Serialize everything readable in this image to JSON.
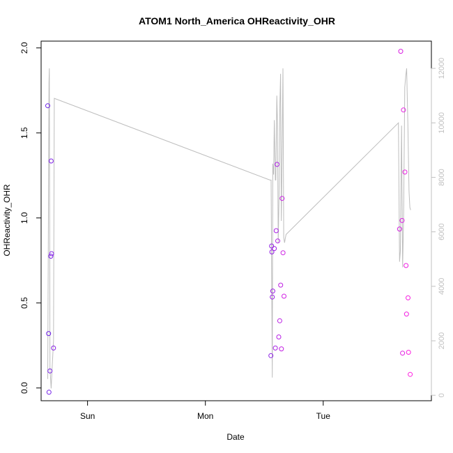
{
  "chart_data": {
    "type": "scatter",
    "title": "ATOM1 North_America OHReactivity_OHR",
    "xlabel": "Date",
    "ylabel": "OHReactivity_OHR",
    "x_ticks": [
      "Sun",
      "Mon",
      "Tue"
    ],
    "x_tick_days": [
      1,
      2,
      3
    ],
    "xlim_days": [
      0.606,
      3.918
    ],
    "ylim": [
      -0.075,
      2.04
    ],
    "y_ticks": [
      0.0,
      0.5,
      1.0,
      1.5,
      2.0
    ],
    "y2lim": [
      -200,
      13000
    ],
    "y2_ticks": [
      0,
      2000,
      4000,
      6000,
      8000,
      10000,
      12000
    ],
    "grid": false,
    "colors": {
      "point_start": "#6a1fe8",
      "point_end": "#ff1fe0",
      "secondary_line": "#bdbdbd",
      "secondary_axis": "#c0c0c0"
    },
    "series": [
      {
        "type": "points",
        "x_days": [
          0.662,
          0.669,
          0.673,
          0.681,
          0.688,
          0.691,
          0.695,
          0.711,
          2.556,
          2.562,
          2.564,
          2.568,
          2.572,
          2.585,
          2.594,
          2.601,
          2.608,
          2.614,
          2.623,
          2.631,
          2.639,
          2.645,
          2.651,
          2.659,
          2.667,
          3.648,
          3.658,
          3.669,
          3.673,
          3.681,
          3.693,
          3.703,
          3.707,
          3.72,
          3.724,
          3.738
        ],
        "y": [
          1.66,
          0.32,
          -0.025,
          0.1,
          0.775,
          1.335,
          0.79,
          0.235,
          0.19,
          0.835,
          0.8,
          0.535,
          0.57,
          0.82,
          0.235,
          0.925,
          1.315,
          0.865,
          0.3,
          0.395,
          0.605,
          0.23,
          1.115,
          0.795,
          0.54,
          0.935,
          1.98,
          0.985,
          0.205,
          1.635,
          1.27,
          0.72,
          0.435,
          0.53,
          0.21,
          0.08
        ]
      },
      {
        "type": "secondary_line",
        "x_days": [
          0.662,
          0.673,
          0.676,
          0.681,
          0.691,
          0.698,
          0.711,
          0.718,
          2.549,
          2.558,
          2.568,
          2.572,
          2.579,
          2.585,
          2.594,
          2.598,
          2.606,
          2.612,
          2.618,
          2.625,
          2.632,
          2.638,
          2.644,
          2.651,
          2.658,
          2.665,
          2.672,
          2.684,
          3.638,
          3.648,
          3.655,
          3.665,
          3.674,
          3.682,
          3.692,
          3.7,
          3.708,
          3.718,
          3.728,
          3.735,
          3.742
        ],
        "y2": [
          600,
          11500,
          12000,
          1000,
          250,
          900,
          2000,
          10900,
          7900,
          7900,
          650,
          8500,
          8100,
          10100,
          7900,
          7900,
          11000,
          9900,
          5600,
          7300,
          10700,
          11800,
          6400,
          8900,
          12000,
          5800,
          5600,
          5900,
          10000,
          4900,
          5300,
          9900,
          4700,
          6500,
          11300,
          11700,
          12000,
          10000,
          7500,
          6900,
          6800
        ]
      }
    ]
  }
}
